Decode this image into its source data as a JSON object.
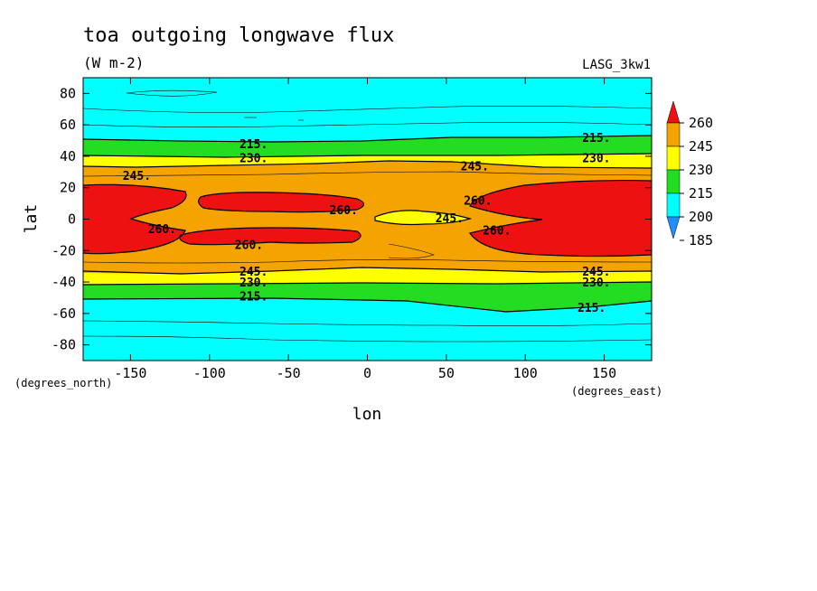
{
  "chart_data": {
    "type": "heatmap",
    "title": "toa outgoing longwave flux",
    "units": "(W m-2)",
    "model_label": "LASG_3kw1",
    "xlabel": "lon",
    "ylabel": "lat",
    "x_units": "(degrees_east)",
    "y_units": "(degrees_north)",
    "xlim": [
      -180,
      180
    ],
    "ylim": [
      -90,
      90
    ],
    "xticks": [
      "-150",
      "-100",
      "-50",
      "0",
      "50",
      "100",
      "150"
    ],
    "yticks": [
      "80",
      "60",
      "40",
      "20",
      "0",
      "-20",
      "-40",
      "-60",
      "-80"
    ],
    "colorbar": {
      "levels": [
        "260",
        "245",
        "230",
        "215",
        "200",
        "185"
      ],
      "colors": {
        "above_260": "#ee1111",
        "245_260": "#f4a300",
        "230_245": "#ffff00",
        "215_230": "#22dd22",
        "200_215": "#00ffff",
        "185_200": "#1e90ff"
      }
    },
    "contour_labels": [
      {
        "text": "215.",
        "lon": -72,
        "lat": 48
      },
      {
        "text": "230.",
        "lon": -72,
        "lat": 39
      },
      {
        "text": "245.",
        "lon": -146,
        "lat": 28
      },
      {
        "text": "260.",
        "lon": -15,
        "lat": 6
      },
      {
        "text": "260.",
        "lon": -130,
        "lat": -6
      },
      {
        "text": "260.",
        "lon": -75,
        "lat": -16
      },
      {
        "text": "245.",
        "lon": 52,
        "lat": 1
      },
      {
        "text": "260.",
        "lon": 70,
        "lat": 12
      },
      {
        "text": "260.",
        "lon": 82,
        "lat": -7
      },
      {
        "text": "245.",
        "lon": 68,
        "lat": 34
      },
      {
        "text": "215.",
        "lon": 145,
        "lat": 52
      },
      {
        "text": "230.",
        "lon": 145,
        "lat": 39
      },
      {
        "text": "245.",
        "lon": -72,
        "lat": -33
      },
      {
        "text": "230.",
        "lon": -72,
        "lat": -40
      },
      {
        "text": "215.",
        "lon": -72,
        "lat": -49
      },
      {
        "text": "245.",
        "lon": 145,
        "lat": -33
      },
      {
        "text": "230.",
        "lon": 145,
        "lat": -40
      },
      {
        "text": "215.",
        "lon": 142,
        "lat": -56
      }
    ]
  }
}
